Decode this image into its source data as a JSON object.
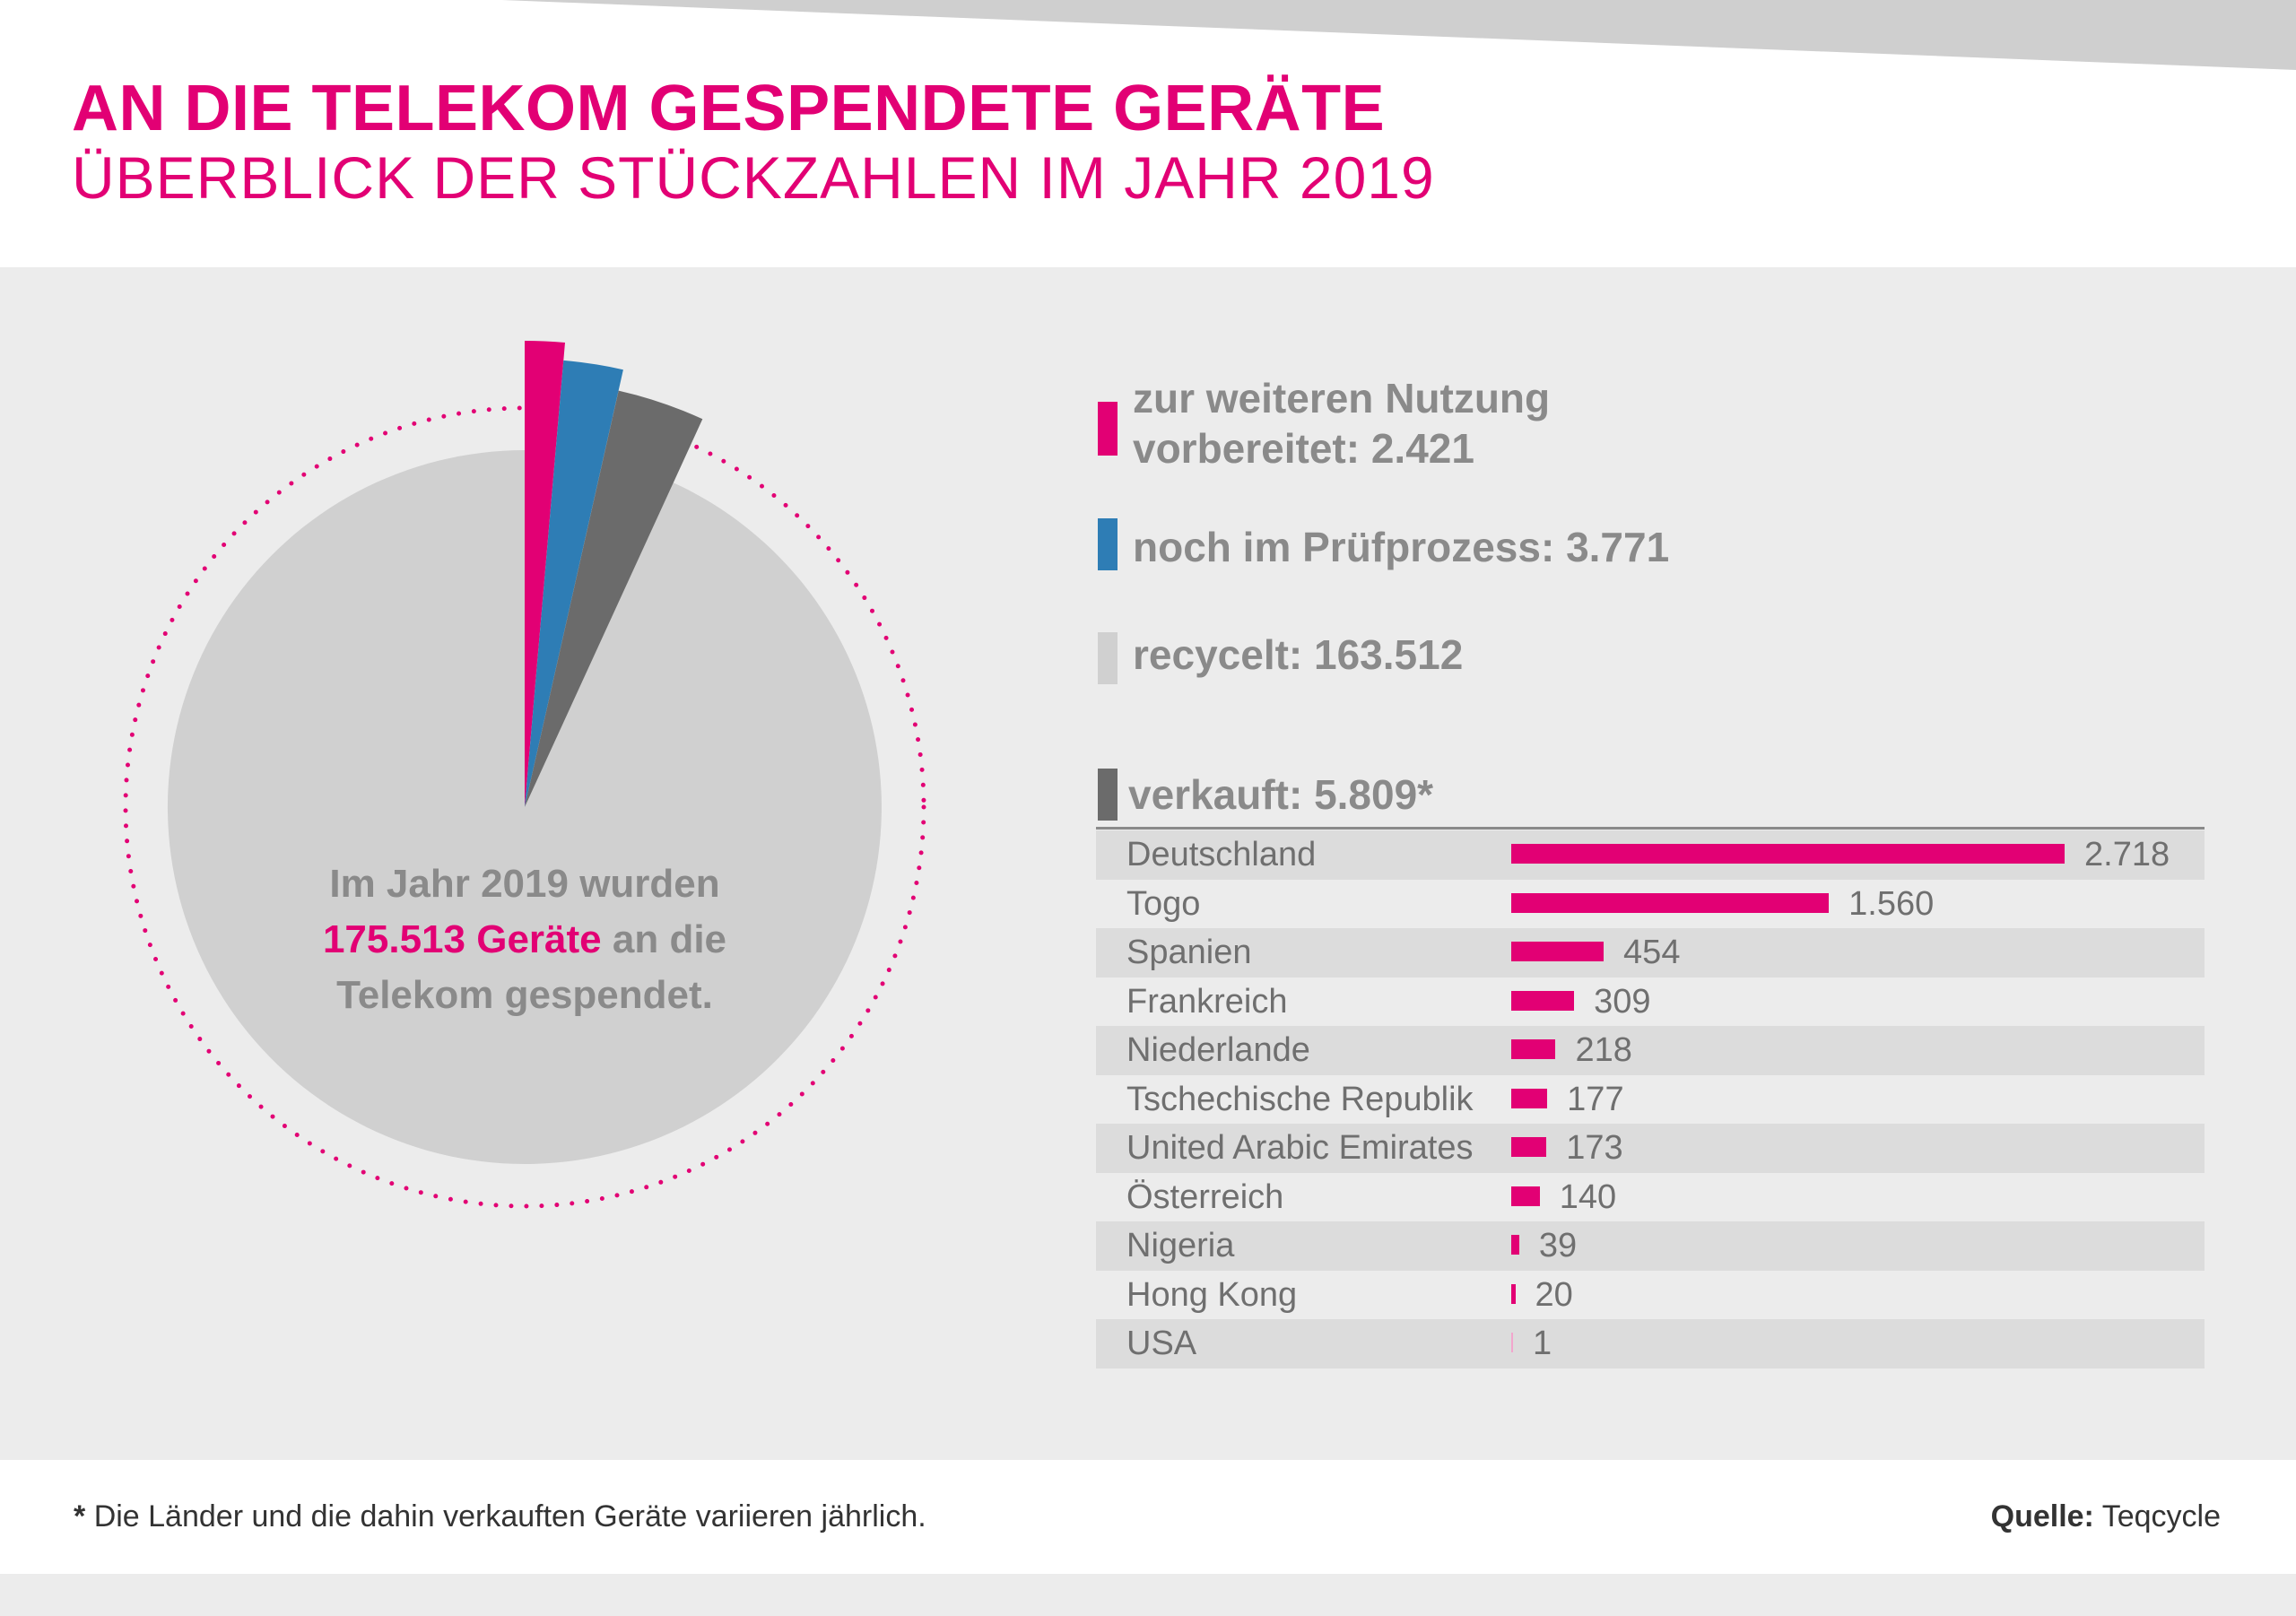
{
  "header": {
    "title": "AN DIE TELEKOM GESPENDETE GERÄTE",
    "subtitle": "ÜBERBLICK DER STÜCKZAHLEN IM JAHR 2019"
  },
  "center_text": {
    "line_before": "Im Jahr 2019 wurden",
    "highlight": "175.513 Geräte",
    "line_after": "an die Telekom gespendet."
  },
  "legend": [
    {
      "label": "zur weiteren Nutzung vorbereitet: 2.421",
      "color": "#e20074"
    },
    {
      "label": "noch im Prüfprozess: 3.771",
      "color": "#2e7db5"
    },
    {
      "label": "recycelt: 163.512",
      "color": "#d0d0d0"
    },
    {
      "label": "verkauft: 5.809*",
      "color": "#6b6b6b"
    }
  ],
  "footer": {
    "footnote_star": "*",
    "footnote_text": "Die Länder und die dahin verkauften Geräte variieren jährlich.",
    "source_label": "Quelle:",
    "source_value": "Teqcycle"
  },
  "colors": {
    "magenta": "#e20074",
    "blue": "#2e7db5",
    "dark_gray": "#6b6b6b",
    "light_gray": "#d0d0d0",
    "panel": "#ececec"
  },
  "chart_data": [
    {
      "type": "pie",
      "total": 175513,
      "slices": [
        {
          "label": "zur weiteren Nutzung vorbereitet",
          "value": 2421,
          "color": "#e20074"
        },
        {
          "label": "noch im Prüfprozess",
          "value": 3771,
          "color": "#2e7db5"
        },
        {
          "label": "verkauft",
          "value": 5809,
          "color": "#6b6b6b"
        },
        {
          "label": "recycelt",
          "value": 163512,
          "color": "#d0d0d0"
        }
      ]
    },
    {
      "type": "bar",
      "orientation": "horizontal",
      "title": "verkauft: 5.809*",
      "categories": [
        "Deutschland",
        "Togo",
        "Spanien",
        "Frankreich",
        "Niederlande",
        "Tschechische Republik",
        "United Arabic Emirates",
        "Österreich",
        "Nigeria",
        "Hong Kong",
        "USA"
      ],
      "values": [
        2718,
        1560,
        454,
        309,
        218,
        177,
        173,
        140,
        39,
        20,
        1
      ],
      "value_labels": [
        "2.718",
        "1.560",
        "454",
        "309",
        "218",
        "177",
        "173",
        "140",
        "39",
        "20",
        "1"
      ],
      "color": "#e20074",
      "xlim": [
        0,
        2718
      ]
    }
  ]
}
